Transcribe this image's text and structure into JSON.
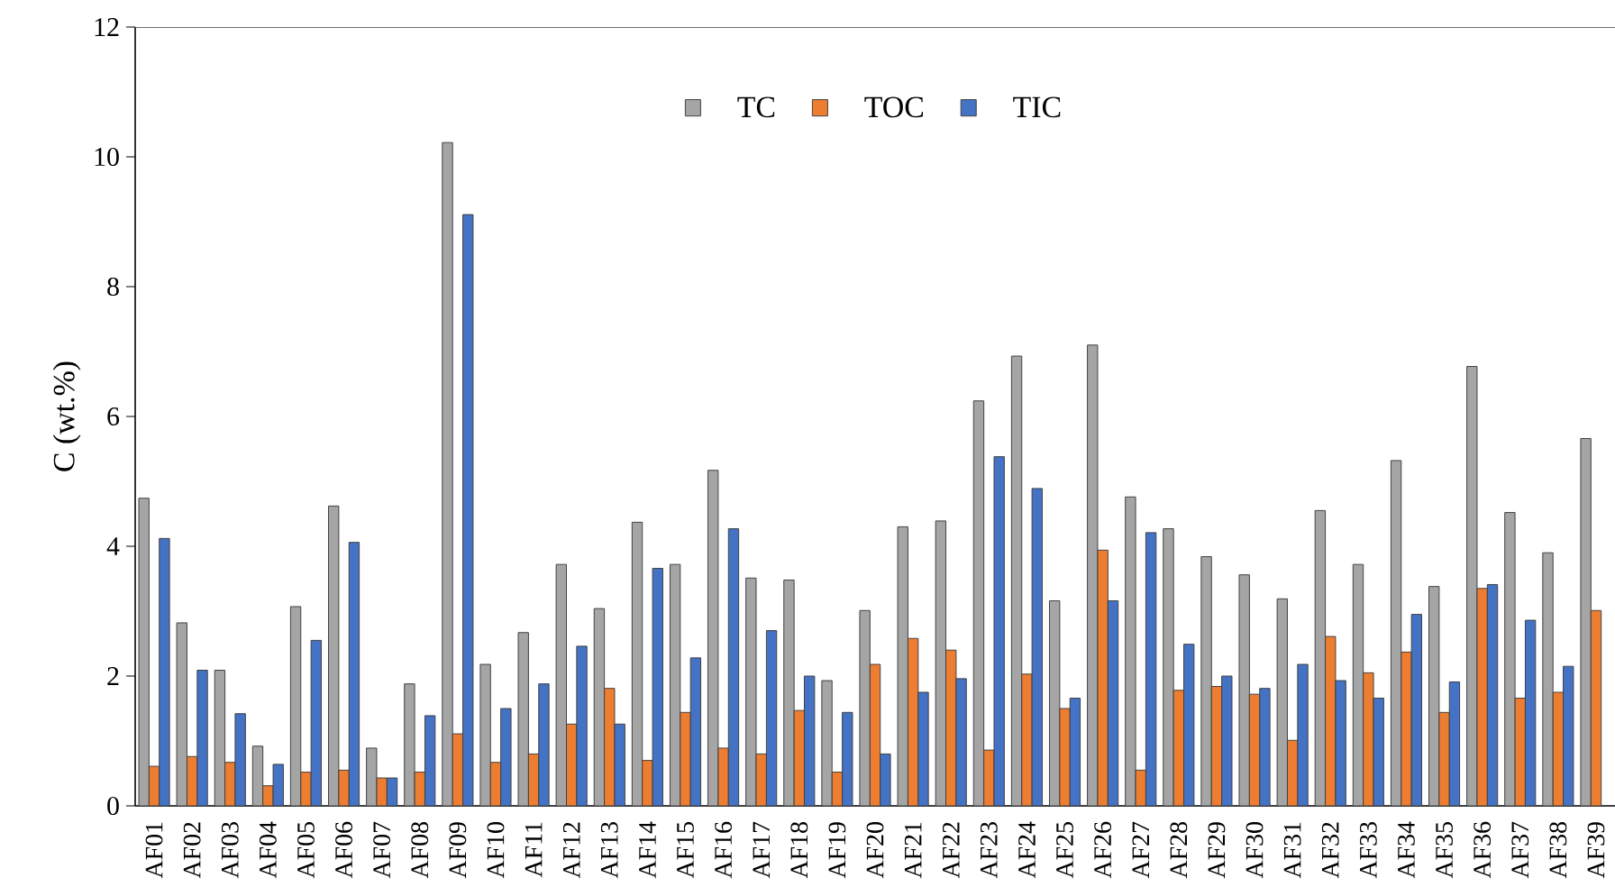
{
  "chart_data": {
    "type": "bar",
    "ylabel": "C (wt.%)",
    "categories": [
      "AF01",
      "AF02",
      "AF03",
      "AF04",
      "AF05",
      "AF06",
      "AF07",
      "AF08",
      "AF09",
      "AF10",
      "AF11",
      "AF12",
      "AF13",
      "AF14",
      "AF15",
      "AF16",
      "AF17",
      "AF18",
      "AF19",
      "AF20",
      "AF21",
      "AF22",
      "AF23",
      "AF24",
      "AF25",
      "AF26",
      "AF27",
      "AF28",
      "AF29",
      "AF30",
      "AF31",
      "AF32",
      "AF33",
      "AF34",
      "AF35",
      "AF36",
      "AF37",
      "AF38",
      "AF39"
    ],
    "series": [
      {
        "name": "TC",
        "color": "#a5a5a5",
        "values": [
          4.74,
          2.82,
          2.09,
          0.92,
          3.07,
          4.62,
          0.89,
          1.88,
          10.22,
          2.18,
          2.67,
          3.72,
          3.04,
          4.37,
          3.72,
          5.17,
          3.51,
          3.48,
          1.93,
          3.01,
          4.3,
          4.39,
          6.24,
          6.93,
          3.16,
          7.1,
          4.76,
          4.27,
          3.84,
          3.56,
          3.19,
          4.55,
          3.72,
          5.32,
          3.38,
          6.77,
          4.52,
          3.9,
          5.66
        ]
      },
      {
        "name": "TOC",
        "color": "#ed7d31",
        "values": [
          0.61,
          0.76,
          0.67,
          0.31,
          0.52,
          0.55,
          0.43,
          0.52,
          1.11,
          0.67,
          0.8,
          1.26,
          1.81,
          0.7,
          1.44,
          0.89,
          0.8,
          1.47,
          0.52,
          2.18,
          2.58,
          2.4,
          0.86,
          2.03,
          1.5,
          3.94,
          0.55,
          1.78,
          1.84,
          1.72,
          1.01,
          2.61,
          2.05,
          2.37,
          1.44,
          3.35,
          1.66,
          1.75,
          3.01
        ]
      },
      {
        "name": "TIC",
        "color": "#4472c4",
        "values": [
          4.12,
          2.09,
          1.42,
          0.64,
          2.55,
          4.06,
          0.43,
          1.39,
          9.11,
          1.5,
          1.88,
          2.46,
          1.26,
          3.66,
          2.28,
          4.27,
          2.7,
          2.0,
          1.44,
          0.8,
          1.75,
          1.96,
          5.38,
          4.89,
          1.66,
          3.16,
          4.21,
          2.49,
          2.0,
          1.81,
          2.18,
          1.93,
          1.66,
          2.95,
          1.91,
          3.41,
          2.86,
          2.15,
          null
        ]
      }
    ],
    "ylim": [
      0,
      12
    ],
    "yticks": [
      0,
      2,
      4,
      6,
      8,
      10,
      12
    ],
    "grid": false,
    "legend": "top"
  }
}
